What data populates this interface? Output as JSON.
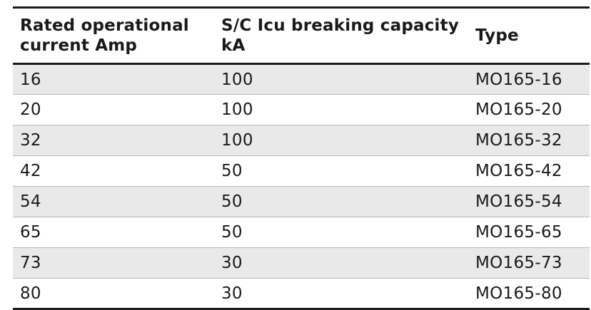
{
  "table": {
    "headers": [
      "Rated operational current Amp",
      "S/C Icu breaking capacity kA",
      "Type"
    ],
    "rows": [
      [
        "16",
        "100",
        "MO165-16"
      ],
      [
        "20",
        "100",
        "MO165-20"
      ],
      [
        "32",
        "100",
        "MO165-32"
      ],
      [
        "42",
        "50",
        "MO165-42"
      ],
      [
        "54",
        "50",
        "MO165-54"
      ],
      [
        "65",
        "50",
        "MO165-65"
      ],
      [
        "73",
        "30",
        "MO165-73"
      ],
      [
        "80",
        "30",
        "MO165-80"
      ]
    ]
  },
  "colors": {
    "stripe": "#e9e9e9",
    "rule": "#1a1a1a",
    "divider": "#b8b8b8"
  }
}
